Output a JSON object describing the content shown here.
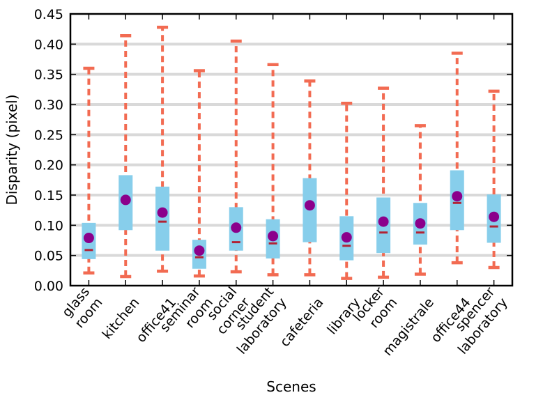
{
  "chart_data": {
    "type": "boxplot",
    "xlabel": "Scenes",
    "ylabel": "Disparity (pixel)",
    "ylim": [
      0,
      0.45
    ],
    "yticks": [
      0.0,
      0.05,
      0.1,
      0.15,
      0.2,
      0.25,
      0.3,
      0.35,
      0.4,
      0.45
    ],
    "ytick_labels": [
      "0.00",
      "0.05",
      "0.10",
      "0.15",
      "0.20",
      "0.25",
      "0.30",
      "0.35",
      "0.40",
      "0.45"
    ],
    "grid": "horizontal",
    "colors": {
      "box": "#87ceeb",
      "whisker": "#f26b52",
      "median": "#b22234",
      "mean": "#8b008b",
      "grid": "#d9d9d9"
    },
    "categories": [
      [
        "glass",
        "room"
      ],
      [
        "kitchen"
      ],
      [
        "office41"
      ],
      [
        "seminar",
        "room"
      ],
      [
        "social",
        "corner"
      ],
      [
        "student",
        "laboratory"
      ],
      [
        "cafeteria"
      ],
      [
        "library"
      ],
      [
        "locker",
        "room"
      ],
      [
        "magistrale"
      ],
      [
        "office44"
      ],
      [
        "spencer",
        "laboratory"
      ]
    ],
    "whisker_low": [
      0.021,
      0.015,
      0.024,
      0.016,
      0.023,
      0.018,
      0.018,
      0.012,
      0.014,
      0.019,
      0.038,
      0.03
    ],
    "q1": [
      0.044,
      0.092,
      0.058,
      0.028,
      0.058,
      0.045,
      0.072,
      0.042,
      0.054,
      0.068,
      0.092,
      0.071
    ],
    "median": [
      0.059,
      null,
      0.106,
      0.047,
      0.072,
      0.07,
      null,
      0.066,
      0.088,
      0.088,
      0.137,
      0.098
    ],
    "q3": [
      0.104,
      0.183,
      0.164,
      0.076,
      0.13,
      0.11,
      0.178,
      0.115,
      0.146,
      0.137,
      0.191,
      0.151
    ],
    "whisker_high": [
      0.36,
      0.414,
      0.428,
      0.356,
      0.405,
      0.366,
      0.339,
      0.302,
      0.327,
      0.265,
      0.385,
      0.322
    ],
    "mean": [
      0.079,
      0.142,
      0.121,
      0.058,
      0.096,
      0.082,
      0.133,
      0.08,
      0.106,
      0.103,
      0.148,
      0.114
    ]
  }
}
